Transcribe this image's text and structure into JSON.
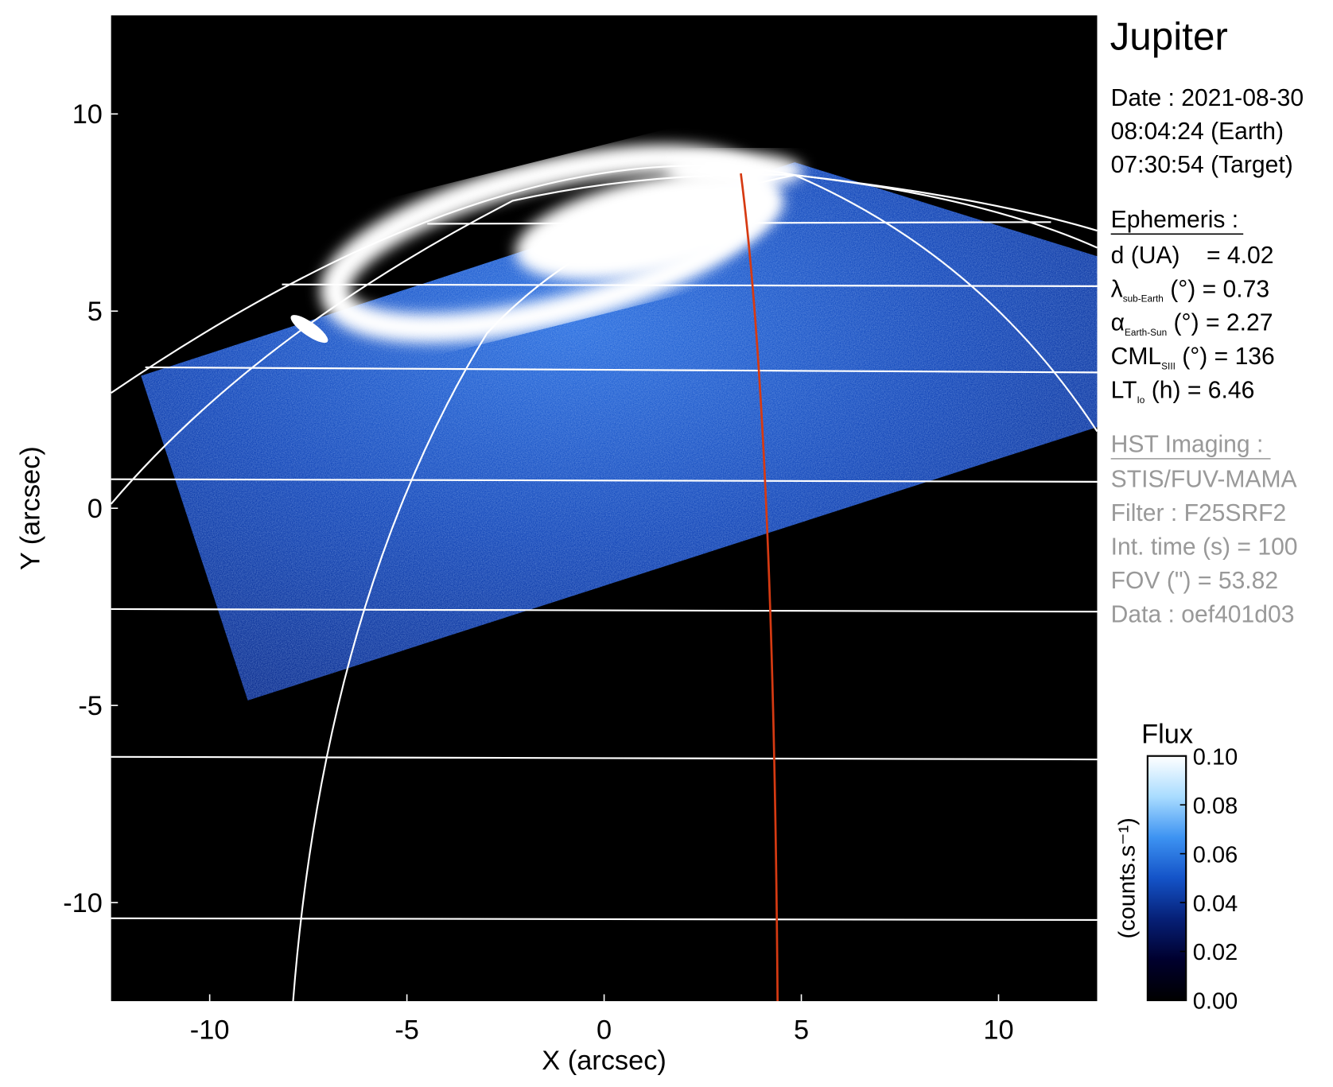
{
  "chart_data": {
    "type": "image",
    "xlabel": "X (arcsec)",
    "ylabel": "Y (arcsec)",
    "xlim": [
      -12.5,
      12.5
    ],
    "ylim": [
      -12.5,
      12.5
    ],
    "xticks": [
      -10,
      -5,
      0,
      5,
      10
    ],
    "yticks": [
      -10,
      -5,
      0,
      5,
      10
    ],
    "colorbar": {
      "title": "Flux",
      "label": "(counts.s⁻¹)",
      "lim": [
        0,
        0.1
      ],
      "ticks": [
        {
          "value": 0,
          "label": "0.00"
        },
        0.02,
        0.04,
        0.06,
        0.08,
        {
          "value": 0.1,
          "label": "0.10"
        }
      ],
      "colormap": [
        "#000000",
        "#00002e",
        "#062077",
        "#1453c8",
        "#3d93f2",
        "#a9dcff",
        "#ffffff"
      ]
    }
  },
  "panel": {
    "title": "Jupiter",
    "date": [
      "Date : 2021-08-30",
      "08:04:24 (Earth)",
      "07:30:54 (Target)"
    ],
    "ephemeris_title": "Ephemeris :",
    "ephemeris": [
      {
        "label": "d (UA)    = 4.02"
      },
      {
        "label": "λ",
        "sub": "sub-Earth",
        "rest": " (°) = 0.73"
      },
      {
        "label": "α",
        "sub": "Earth-Sun",
        "rest": " (°) = 2.27"
      },
      {
        "label": "CML",
        "sub": "SIII",
        "rest": " (°) = 136"
      },
      {
        "label": "LT",
        "sub": "Io",
        "rest": " (h) = 6.46"
      }
    ],
    "hst_title": "HST Imaging :",
    "hst": [
      "STIS/FUV-MAMA",
      "Filter : F25SRF2",
      "Int. time (s) = 100",
      "FOV (\") = 53.82",
      "Data : oef401d03"
    ]
  }
}
